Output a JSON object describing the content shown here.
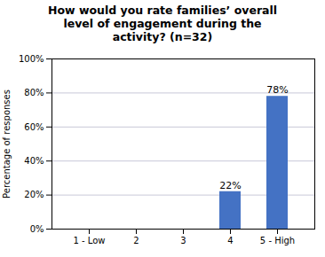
{
  "chart_data": {
    "type": "bar",
    "title": "How would you rate families’ overall\nlevel of engagement during the\nactivity? (n=32)",
    "categories": [
      "1 - Low",
      "2",
      "3",
      "4",
      "5 - High"
    ],
    "values": [
      0,
      0,
      0,
      22,
      78
    ],
    "value_labels": [
      null,
      null,
      null,
      "22%",
      "78%"
    ],
    "data_labels": true,
    "color": "#4472C4",
    "ylabel": "Percentage of responses",
    "ylim": [
      0,
      100
    ],
    "yticks": [
      {
        "value": 0,
        "label": "0%"
      },
      {
        "value": 20,
        "label": "20%"
      },
      {
        "value": 40,
        "label": "40%"
      },
      {
        "value": 60,
        "label": "60%"
      },
      {
        "value": 80,
        "label": "80%"
      },
      {
        "value": 100,
        "label": "100%"
      }
    ],
    "grid": true
  }
}
